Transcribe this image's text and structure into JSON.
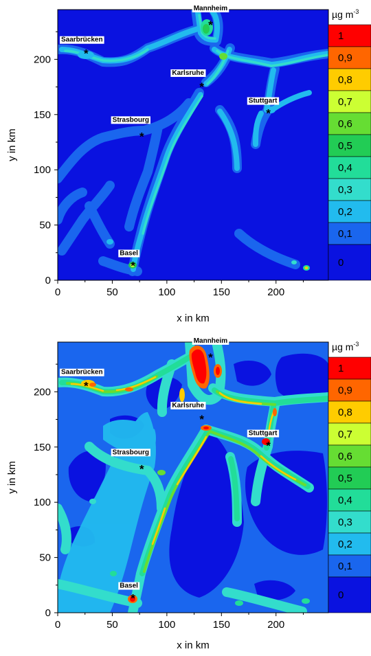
{
  "chart_data": [
    {
      "type": "heatmap",
      "title": "",
      "xlabel": "x in km",
      "ylabel": "y in km",
      "xlim": [
        0,
        248
      ],
      "ylim": [
        0,
        245
      ],
      "xticks": [
        "0",
        "50",
        "100",
        "150",
        "200"
      ],
      "yticks": [
        "0",
        "50",
        "100",
        "150",
        "200"
      ],
      "colorbar": {
        "unit": "µg m",
        "unit_exponent": "-3",
        "levels": [
          "1",
          "0,9",
          "0,8",
          "0,7",
          "0,6",
          "0,5",
          "0,4",
          "0,3",
          "0,2",
          "0,1",
          "0"
        ],
        "colors": [
          "#ff0000",
          "#ff6600",
          "#ffcc00",
          "#ccff33",
          "#66dd33",
          "#22cc55",
          "#22dd99",
          "#33ddcc",
          "#22bbee",
          "#1a66ee",
          "#0a12e0"
        ]
      },
      "cities": [
        {
          "name": "Mannheim",
          "x": 140,
          "y": 232,
          "marker_color": "#ffffff"
        },
        {
          "name": "Saarbrücken",
          "x": 26,
          "y": 206,
          "marker_color": "#000000"
        },
        {
          "name": "Karlsruhe",
          "x": 132,
          "y": 176,
          "marker_color": "#ffffff"
        },
        {
          "name": "Stuttgart",
          "x": 193,
          "y": 152,
          "marker_color": "#ffffff"
        },
        {
          "name": "Strasbourg",
          "x": 77,
          "y": 131,
          "marker_color": "#ffffff"
        },
        {
          "name": "Basel",
          "x": 69,
          "y": 14,
          "marker_color": "#000000"
        }
      ],
      "background_level": "0"
    },
    {
      "type": "heatmap",
      "title": "",
      "xlabel": "x in km",
      "ylabel": "y in km",
      "xlim": [
        0,
        248
      ],
      "ylim": [
        0,
        245
      ],
      "xticks": [
        "0",
        "50",
        "100",
        "150",
        "200"
      ],
      "yticks": [
        "0",
        "50",
        "100",
        "150",
        "200"
      ],
      "colorbar": {
        "unit": "µg m",
        "unit_exponent": "-3",
        "levels": [
          "1",
          "0,9",
          "0,8",
          "0,7",
          "0,6",
          "0,5",
          "0,4",
          "0,3",
          "0,2",
          "0,1",
          "0"
        ],
        "colors": [
          "#ff0000",
          "#ff6600",
          "#ffcc00",
          "#ccff33",
          "#66dd33",
          "#22cc55",
          "#22dd99",
          "#33ddcc",
          "#22bbee",
          "#1a66ee",
          "#0a12e0"
        ]
      },
      "cities": [
        {
          "name": "Mannheim",
          "x": 140,
          "y": 232,
          "marker_color": "#ffffff"
        },
        {
          "name": "Saarbrücken",
          "x": 26,
          "y": 206,
          "marker_color": "#000000"
        },
        {
          "name": "Karlsruhe",
          "x": 132,
          "y": 176,
          "marker_color": "#ffffff"
        },
        {
          "name": "Stuttgart",
          "x": 193,
          "y": 152,
          "marker_color": "#ffffff"
        },
        {
          "name": "Strasbourg",
          "x": 77,
          "y": 131,
          "marker_color": "#ffffff"
        },
        {
          "name": "Basel",
          "x": 69,
          "y": 14,
          "marker_color": "#000000"
        }
      ],
      "background_level": "0,1"
    }
  ]
}
